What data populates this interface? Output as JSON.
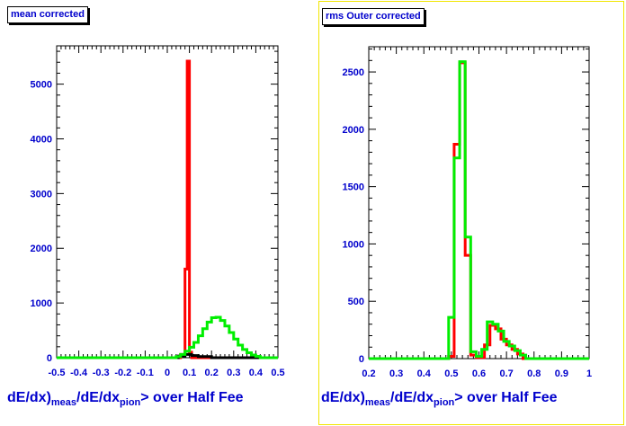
{
  "left": {
    "title": "mean corrected",
    "xlabel_parts": [
      "dE/dx)",
      "meas",
      "/dE/dx",
      "pion",
      "> over Half Fee"
    ],
    "chart_data": {
      "type": "bar",
      "title": "mean corrected",
      "xlabel": "dE/dx)meas/dE/dxpion> over Half Fee",
      "ylabel": "",
      "xlim": [
        -0.5,
        0.5
      ],
      "ylim": [
        0,
        5700
      ],
      "x_ticks": [
        -0.5,
        -0.4,
        -0.3,
        -0.2,
        -0.1,
        0,
        0.1,
        0.2,
        0.3,
        0.4,
        0.5
      ],
      "x_tick_labels": [
        "-0.5",
        "-0.4",
        "-0.3",
        "-0.2",
        "-0.1",
        "0",
        "0.1",
        "0.2",
        "0.3",
        "0.4",
        "0.5"
      ],
      "y_ticks": [
        0,
        1000,
        2000,
        3000,
        4000,
        5000
      ],
      "y_tick_labels": [
        "0",
        "1000",
        "2000",
        "3000",
        "4000",
        "5000"
      ],
      "series": [
        {
          "color": "#ff0000",
          "bins": [
            [
              -0.5,
              0.06,
              0
            ],
            [
              0.06,
              0.08,
              60
            ],
            [
              0.08,
              0.09,
              1620
            ],
            [
              0.09,
              0.1,
              5420
            ],
            [
              0.1,
              0.11,
              100
            ],
            [
              0.11,
              0.5,
              0
            ]
          ]
        },
        {
          "color": "#000000",
          "bins": [
            [
              -0.5,
              0.05,
              0
            ],
            [
              0.05,
              0.08,
              30
            ],
            [
              0.08,
              0.11,
              60
            ],
            [
              0.11,
              0.14,
              40
            ],
            [
              0.14,
              0.2,
              20
            ],
            [
              0.2,
              0.5,
              0
            ]
          ]
        },
        {
          "color": "#00ee00",
          "bins": [
            [
              -0.5,
              0.04,
              0
            ],
            [
              0.04,
              0.06,
              20
            ],
            [
              0.06,
              0.08,
              60
            ],
            [
              0.08,
              0.1,
              120
            ],
            [
              0.1,
              0.12,
              190
            ],
            [
              0.12,
              0.14,
              280
            ],
            [
              0.14,
              0.16,
              400
            ],
            [
              0.16,
              0.18,
              530
            ],
            [
              0.18,
              0.2,
              650
            ],
            [
              0.2,
              0.22,
              730
            ],
            [
              0.22,
              0.24,
              740
            ],
            [
              0.24,
              0.26,
              680
            ],
            [
              0.26,
              0.28,
              580
            ],
            [
              0.28,
              0.3,
              460
            ],
            [
              0.3,
              0.32,
              340
            ],
            [
              0.32,
              0.34,
              230
            ],
            [
              0.34,
              0.36,
              150
            ],
            [
              0.36,
              0.38,
              90
            ],
            [
              0.38,
              0.4,
              50
            ],
            [
              0.4,
              0.42,
              25
            ],
            [
              0.42,
              0.5,
              0
            ]
          ]
        }
      ]
    }
  },
  "right": {
    "title": "rms  Outer corrected",
    "xlabel_parts": [
      "dE/dx)",
      "meas",
      "/dE/dx",
      "pion",
      "> over Half Fee"
    ],
    "chart_data": {
      "type": "bar",
      "title": "rms  Outer corrected",
      "xlabel": "dE/dx)meas/dE/dxpion> over Half Fee",
      "ylabel": "",
      "xlim": [
        0.2,
        1.0
      ],
      "ylim": [
        0,
        2720
      ],
      "x_ticks": [
        0.2,
        0.3,
        0.4,
        0.5,
        0.6,
        0.7,
        0.8,
        0.9,
        1.0
      ],
      "x_tick_labels": [
        "0.2",
        "0.3",
        "0.4",
        "0.5",
        "0.6",
        "0.7",
        "0.8",
        "0.9",
        "1"
      ],
      "y_ticks": [
        0,
        500,
        1000,
        1500,
        2000,
        2500
      ],
      "y_tick_labels": [
        "0",
        "500",
        "1000",
        "1500",
        "2000",
        "2500"
      ],
      "series": [
        {
          "color": "#ff0000",
          "bins": [
            [
              0.2,
              0.49,
              0
            ],
            [
              0.49,
              0.51,
              20
            ],
            [
              0.51,
              0.53,
              1870
            ],
            [
              0.53,
              0.55,
              2580
            ],
            [
              0.55,
              0.57,
              900
            ],
            [
              0.57,
              0.59,
              30
            ],
            [
              0.59,
              0.62,
              10
            ],
            [
              0.62,
              0.64,
              120
            ],
            [
              0.64,
              0.66,
              290
            ],
            [
              0.66,
              0.68,
              260
            ],
            [
              0.68,
              0.7,
              170
            ],
            [
              0.7,
              0.72,
              120
            ],
            [
              0.72,
              0.74,
              80
            ],
            [
              0.74,
              0.76,
              40
            ],
            [
              0.76,
              1.0,
              0
            ]
          ]
        },
        {
          "color": "#00ee00",
          "bins": [
            [
              0.2,
              0.49,
              0
            ],
            [
              0.49,
              0.51,
              360
            ],
            [
              0.51,
              0.53,
              1750
            ],
            [
              0.53,
              0.55,
              2590
            ],
            [
              0.55,
              0.57,
              1060
            ],
            [
              0.57,
              0.59,
              60
            ],
            [
              0.59,
              0.61,
              20
            ],
            [
              0.61,
              0.63,
              80
            ],
            [
              0.63,
              0.65,
              320
            ],
            [
              0.65,
              0.67,
              300
            ],
            [
              0.67,
              0.69,
              240
            ],
            [
              0.69,
              0.71,
              150
            ],
            [
              0.71,
              0.73,
              110
            ],
            [
              0.73,
              0.75,
              70
            ],
            [
              0.75,
              0.77,
              30
            ],
            [
              0.77,
              1.0,
              0
            ]
          ]
        }
      ]
    }
  }
}
